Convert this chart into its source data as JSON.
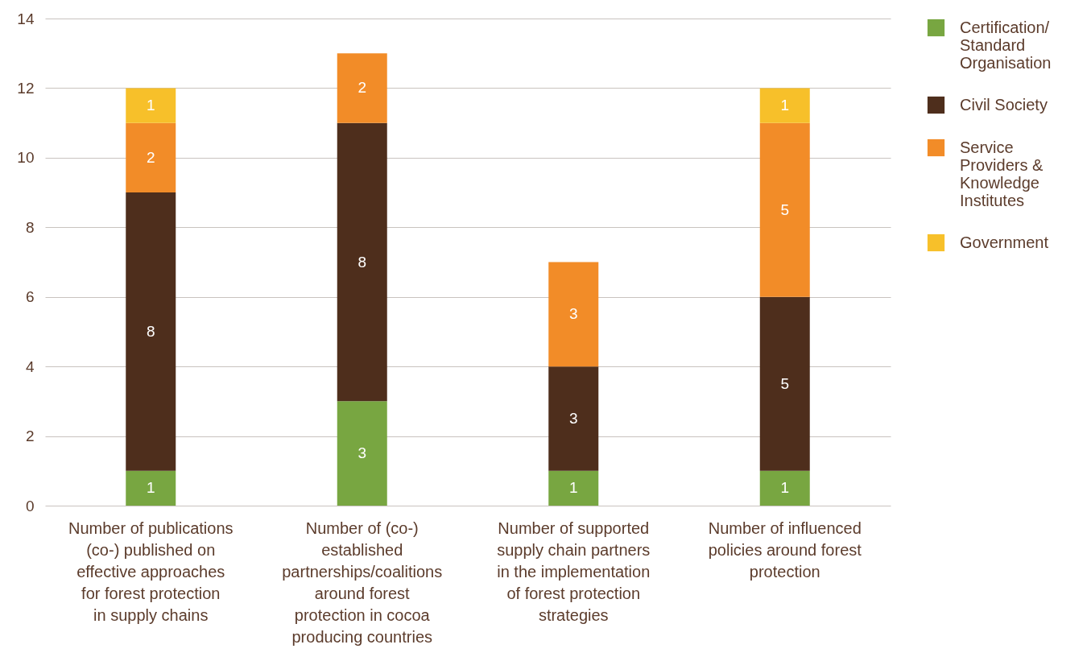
{
  "chart_data": {
    "type": "bar",
    "stacked": true,
    "categories": [
      "Number of publications (co-) published on effective approaches for forest protection in supply chains",
      "Number of (co-) established partnerships/coalitions around forest protection in cocoa producing countries",
      "Number of supported supply chain partners in the implementation of forest protection strategies",
      "Number of influenced policies around forest protection"
    ],
    "series": [
      {
        "name": "Certification/ Standard Organisation",
        "color": "#78a641",
        "values": [
          1,
          3,
          1,
          1
        ],
        "value_labels": [
          "1",
          "3",
          "1",
          "1"
        ]
      },
      {
        "name": "Civil Society",
        "color": "#4e2e1c",
        "values": [
          8,
          8,
          3,
          5
        ],
        "value_labels": [
          "8",
          "8",
          "3",
          "5"
        ]
      },
      {
        "name": "Service Providers & Knowledge Institutes",
        "color": "#f28c28",
        "values": [
          2,
          2,
          3,
          5
        ],
        "value_labels": [
          "2",
          "2",
          "3",
          "5"
        ]
      },
      {
        "name": "Government",
        "color": "#f7c02a",
        "values": [
          1,
          null,
          null,
          1
        ],
        "value_labels": [
          "1",
          null,
          null,
          "1"
        ]
      }
    ],
    "ylim": [
      0,
      14
    ],
    "yticks": [
      0,
      2,
      4,
      6,
      8,
      10,
      12,
      14
    ],
    "grid": "y",
    "legend": "right"
  }
}
